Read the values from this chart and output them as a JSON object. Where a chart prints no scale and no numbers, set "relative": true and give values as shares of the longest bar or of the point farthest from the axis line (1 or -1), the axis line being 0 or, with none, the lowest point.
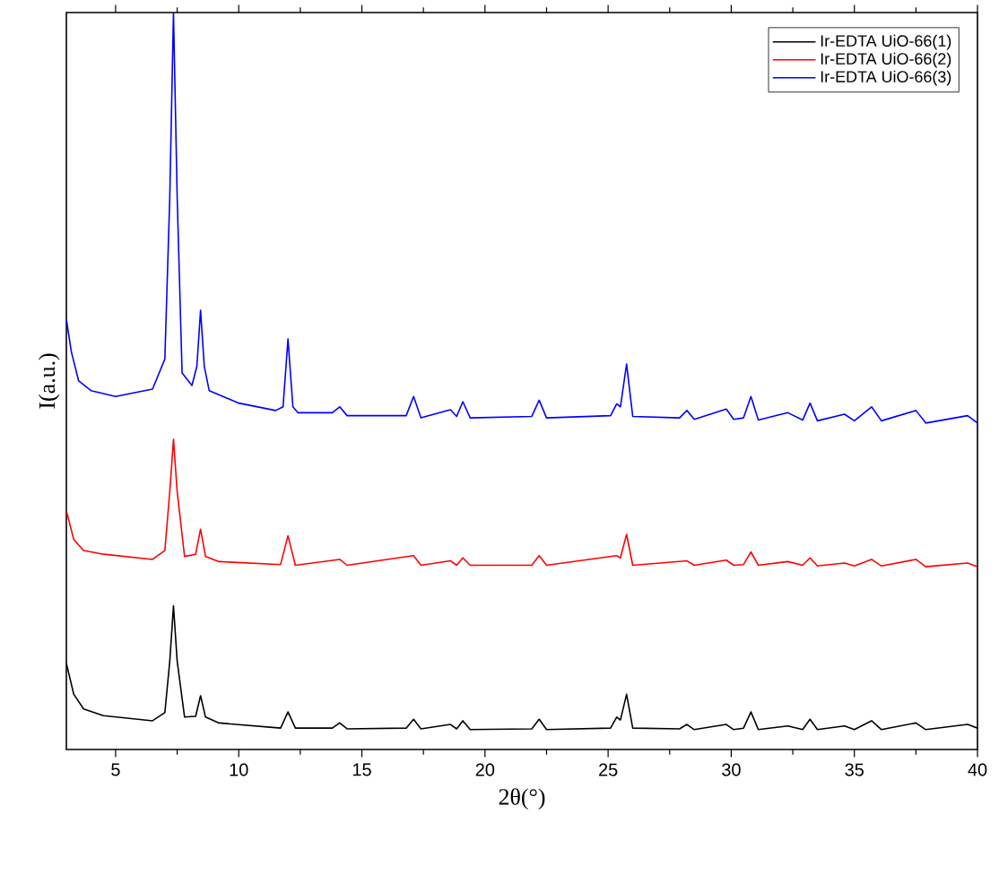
{
  "chart_data": {
    "type": "line",
    "xlabel": "2θ(°)",
    "ylabel": "I(a.u.)",
    "relative": true,
    "xlim": [
      3,
      40
    ],
    "xticks": [
      5,
      10,
      15,
      20,
      25,
      30,
      35,
      40
    ],
    "legend": "top right",
    "grid": false,
    "marker": "none",
    "line_style": "solid",
    "series": [
      {
        "name": "Ir-EDTA UiO-66(1)",
        "color": "#000000",
        "x": [
          3,
          3.3,
          3.7,
          4.5,
          6.5,
          7.0,
          7.2,
          7.35,
          7.5,
          7.8,
          8.25,
          8.45,
          8.65,
          9.2,
          11.7,
          12.0,
          12.3,
          13.8,
          14.1,
          14.4,
          16.8,
          17.1,
          17.4,
          18.6,
          18.85,
          19.1,
          19.4,
          21.9,
          22.2,
          22.5,
          25.1,
          25.35,
          25.5,
          25.75,
          26.0,
          27.9,
          28.2,
          28.5,
          29.8,
          30.1,
          30.5,
          30.8,
          31.1,
          32.3,
          32.9,
          33.2,
          33.5,
          34.6,
          35.0,
          35.7,
          36.1,
          37.5,
          37.9,
          39.6,
          40
        ],
        "values": [
          0.117,
          0.075,
          0.055,
          0.046,
          0.039,
          0.05,
          0.12,
          0.195,
          0.12,
          0.044,
          0.045,
          0.073,
          0.044,
          0.036,
          0.029,
          0.051,
          0.029,
          0.029,
          0.036,
          0.028,
          0.029,
          0.041,
          0.028,
          0.034,
          0.028,
          0.039,
          0.027,
          0.028,
          0.041,
          0.027,
          0.029,
          0.044,
          0.04,
          0.075,
          0.029,
          0.028,
          0.034,
          0.027,
          0.034,
          0.027,
          0.029,
          0.051,
          0.027,
          0.032,
          0.027,
          0.041,
          0.027,
          0.032,
          0.027,
          0.039,
          0.027,
          0.036,
          0.027,
          0.034,
          0.029
        ]
      },
      {
        "name": "Ir-EDTA UiO-66(2)",
        "color": "#ff0000",
        "x": [
          3,
          3.3,
          3.7,
          4.5,
          6.5,
          7.0,
          7.2,
          7.35,
          7.5,
          7.8,
          8.25,
          8.45,
          8.65,
          9.2,
          11.7,
          12.0,
          12.3,
          14.1,
          14.4,
          17.1,
          17.4,
          18.6,
          18.85,
          19.1,
          19.4,
          21.9,
          22.2,
          22.5,
          25.35,
          25.5,
          25.75,
          26.0,
          28.2,
          28.5,
          29.8,
          30.1,
          30.5,
          30.8,
          31.1,
          32.3,
          32.9,
          33.2,
          33.5,
          34.6,
          35.0,
          35.7,
          36.1,
          37.5,
          37.9,
          39.6,
          40
        ],
        "values": [
          0.324,
          0.285,
          0.27,
          0.265,
          0.258,
          0.27,
          0.35,
          0.421,
          0.35,
          0.262,
          0.265,
          0.299,
          0.262,
          0.255,
          0.251,
          0.29,
          0.25,
          0.258,
          0.25,
          0.263,
          0.25,
          0.256,
          0.25,
          0.26,
          0.25,
          0.25,
          0.263,
          0.25,
          0.263,
          0.26,
          0.292,
          0.25,
          0.256,
          0.25,
          0.257,
          0.25,
          0.251,
          0.268,
          0.25,
          0.255,
          0.25,
          0.26,
          0.249,
          0.253,
          0.249,
          0.258,
          0.249,
          0.258,
          0.248,
          0.253,
          0.248
        ]
      },
      {
        "name": "Ir-EDTA UiO-66(3)",
        "color": "#0000ff",
        "x": [
          3,
          3.2,
          3.5,
          4,
          5,
          6.5,
          7.0,
          7.2,
          7.35,
          7.5,
          7.7,
          8.1,
          8.3,
          8.45,
          8.6,
          8.8,
          10,
          11.5,
          11.8,
          12.0,
          12.2,
          12.4,
          13.8,
          14.1,
          14.4,
          16.8,
          17.1,
          17.4,
          18.6,
          18.85,
          19.1,
          19.4,
          21.9,
          22.2,
          22.5,
          25.1,
          25.35,
          25.5,
          25.75,
          26.0,
          27.9,
          28.2,
          28.5,
          29.8,
          30.1,
          30.5,
          30.8,
          31.1,
          32.3,
          32.9,
          33.2,
          33.5,
          34.6,
          35.0,
          35.7,
          36.1,
          37.5,
          37.9,
          39.6,
          40
        ],
        "values": [
          0.584,
          0.54,
          0.5,
          0.487,
          0.479,
          0.489,
          0.53,
          0.75,
          1.0,
          0.75,
          0.511,
          0.494,
          0.52,
          0.596,
          0.52,
          0.487,
          0.47,
          0.46,
          0.465,
          0.557,
          0.465,
          0.457,
          0.457,
          0.465,
          0.453,
          0.453,
          0.479,
          0.45,
          0.461,
          0.452,
          0.472,
          0.45,
          0.452,
          0.474,
          0.45,
          0.453,
          0.469,
          0.465,
          0.523,
          0.452,
          0.45,
          0.46,
          0.448,
          0.462,
          0.448,
          0.45,
          0.479,
          0.447,
          0.457,
          0.447,
          0.47,
          0.446,
          0.455,
          0.446,
          0.465,
          0.446,
          0.46,
          0.443,
          0.453,
          0.443
        ]
      }
    ]
  }
}
